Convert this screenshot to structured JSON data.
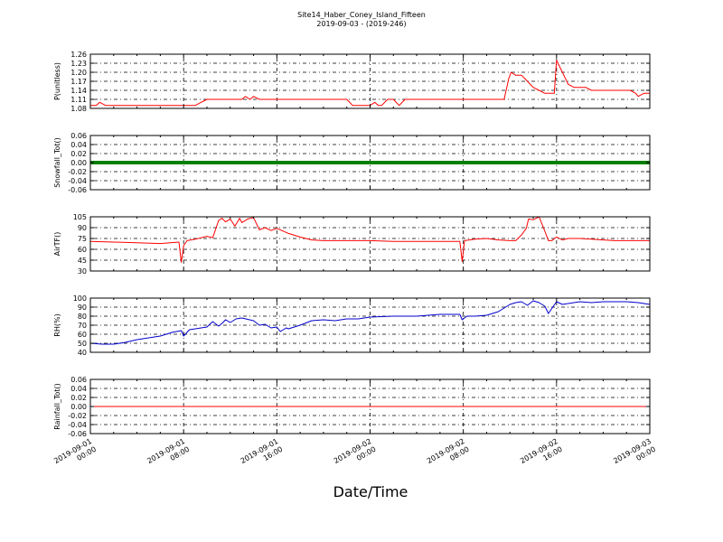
{
  "chart_data": {
    "type": "line",
    "title": "Site14_Haber_Coney_Island_Fifteen",
    "subtitle": "2019-09-03 - (2019-246)",
    "xlabel": "Date/Time",
    "x_range": [
      "2019-09-01 00:00",
      "2019-09-03 00:00"
    ],
    "x_ticks": [
      {
        "d": "2019-09-01",
        "t": "00:00"
      },
      {
        "d": "2019-09-01",
        "t": "08:00"
      },
      {
        "d": "2019-09-01",
        "t": "16:00"
      },
      {
        "d": "2019-09-02",
        "t": "00:00"
      },
      {
        "d": "2019-09-02",
        "t": "08:00"
      },
      {
        "d": "2019-09-02",
        "t": "16:00"
      },
      {
        "d": "2019-09-03",
        "t": "00:00"
      }
    ],
    "x_minor_tick_hours": 2,
    "grid": true,
    "panels": [
      {
        "ylabel": "P(unitless)",
        "ylim": [
          1.08,
          1.26
        ],
        "yticks": [
          1.08,
          1.11,
          1.14,
          1.17,
          1.2,
          1.23,
          1.26
        ],
        "tick_decimals": 2,
        "color": "#ff0000",
        "hours": [
          0,
          0.5,
          0.8,
          1.3,
          2,
          3,
          3.5,
          4,
          5,
          5.5,
          6,
          7,
          8,
          8.5,
          9,
          9.5,
          10,
          10.5,
          11,
          12,
          13,
          13.3,
          13.7,
          14,
          14.5,
          15,
          16,
          17,
          18,
          19,
          20,
          21,
          22,
          22.5,
          23,
          23.5,
          24,
          24.4,
          24.7,
          25,
          25.5,
          26,
          26.5,
          27,
          27.5,
          28,
          29,
          30,
          31,
          32,
          33,
          34,
          35,
          35.5,
          35.9,
          36.1,
          36.5,
          37,
          37.5,
          38,
          38.5,
          39,
          39.5,
          39.8,
          40,
          40.5,
          41,
          41.5,
          42,
          42.5,
          43,
          44,
          45,
          46,
          46.3,
          46.8,
          47,
          47.5,
          48
        ],
        "values": [
          1.09,
          1.09,
          1.1,
          1.09,
          1.09,
          1.09,
          1.09,
          1.09,
          1.09,
          1.09,
          1.09,
          1.09,
          1.09,
          1.09,
          1.09,
          1.1,
          1.11,
          1.11,
          1.11,
          1.11,
          1.11,
          1.12,
          1.11,
          1.12,
          1.11,
          1.11,
          1.11,
          1.11,
          1.11,
          1.11,
          1.11,
          1.11,
          1.11,
          1.09,
          1.09,
          1.09,
          1.09,
          1.1,
          1.09,
          1.09,
          1.11,
          1.11,
          1.09,
          1.11,
          1.11,
          1.11,
          1.11,
          1.11,
          1.11,
          1.11,
          1.11,
          1.11,
          1.11,
          1.11,
          1.18,
          1.2,
          1.19,
          1.19,
          1.17,
          1.15,
          1.14,
          1.13,
          1.13,
          1.13,
          1.24,
          1.2,
          1.16,
          1.15,
          1.15,
          1.15,
          1.14,
          1.14,
          1.14,
          1.14,
          1.14,
          1.13,
          1.12,
          1.13,
          1.13
        ]
      },
      {
        "ylabel": "Snowfall_Tot()",
        "ylim": [
          -0.06,
          0.06
        ],
        "yticks": [
          -0.06,
          -0.04,
          -0.02,
          0.0,
          0.02,
          0.04,
          0.06
        ],
        "tick_decimals": 2,
        "color": "#008000",
        "line_width": 4,
        "hours": [
          0,
          48
        ],
        "values": [
          0,
          0
        ]
      },
      {
        "ylabel": "AirTF()",
        "ylim": [
          30,
          105
        ],
        "yticks": [
          30,
          45,
          60,
          75,
          90,
          105
        ],
        "tick_decimals": 0,
        "color": "#ff0000",
        "hours": [
          0,
          2,
          4,
          6,
          7.6,
          7.8,
          8,
          8.3,
          9,
          10,
          10.5,
          11,
          11.3,
          11.6,
          12,
          12.4,
          12.8,
          13,
          13.5,
          14,
          14.5,
          15,
          15.5,
          16,
          17,
          18,
          19,
          20,
          22,
          24,
          26,
          28,
          31.7,
          31.9,
          32.1,
          33,
          34,
          35,
          36,
          36.5,
          37,
          37.4,
          37.6,
          38,
          38.5,
          39,
          39.3,
          39.6,
          40,
          40.5,
          41,
          42,
          43,
          44,
          45,
          46,
          47,
          48
        ],
        "values": [
          71,
          70,
          69,
          68,
          70,
          42,
          65,
          72,
          74,
          78,
          76,
          100,
          103,
          98,
          102,
          92,
          103,
          97,
          102,
          104,
          87,
          90,
          86,
          89,
          82,
          77,
          73,
          72,
          72,
          72,
          71,
          71,
          71,
          43,
          72,
          74,
          75,
          73,
          72,
          72,
          80,
          89,
          102,
          101,
          105,
          85,
          72,
          72,
          77,
          73,
          75,
          75,
          74,
          73,
          72,
          72,
          72,
          72
        ]
      },
      {
        "ylabel": "RH(%)",
        "ylim": [
          40,
          100
        ],
        "yticks": [
          40,
          50,
          60,
          70,
          80,
          90,
          100
        ],
        "tick_decimals": 0,
        "color": "#0000cc",
        "hours": [
          0,
          1,
          2,
          3,
          4,
          5,
          6,
          7,
          7.8,
          8,
          8.5,
          9,
          10,
          10.5,
          11,
          11.3,
          11.6,
          12,
          12.5,
          13,
          14,
          14.5,
          15,
          15.5,
          16,
          16.3,
          16.8,
          17,
          18,
          19,
          20,
          21,
          22,
          23,
          24,
          26,
          28,
          30,
          31.7,
          31.9,
          32.3,
          33,
          34,
          35,
          36,
          36.5,
          37,
          37.5,
          38,
          38.5,
          39,
          39.3,
          40,
          40.5,
          41,
          42,
          43,
          44,
          45,
          46,
          47,
          48
        ],
        "values": [
          50,
          49,
          49,
          51,
          54,
          56,
          58,
          62,
          64,
          58,
          65,
          66,
          68,
          74,
          69,
          72,
          76,
          73,
          77,
          78,
          75,
          70,
          71,
          67,
          68,
          63,
          67,
          66,
          70,
          75,
          76,
          75,
          77,
          77,
          79,
          80,
          80,
          82,
          82,
          76,
          80,
          80,
          81,
          85,
          93,
          95,
          96,
          92,
          97,
          95,
          91,
          83,
          96,
          93,
          94,
          96,
          95,
          96,
          96,
          96,
          95,
          93
        ]
      },
      {
        "ylabel": "Rainfall_Tot()",
        "ylim": [
          -0.06,
          0.06
        ],
        "yticks": [
          -0.06,
          -0.04,
          -0.02,
          0.0,
          0.02,
          0.04,
          0.06
        ],
        "tick_decimals": 2,
        "color": "#ff0000",
        "hours": [
          0,
          48
        ],
        "values": [
          0,
          0
        ]
      }
    ]
  }
}
